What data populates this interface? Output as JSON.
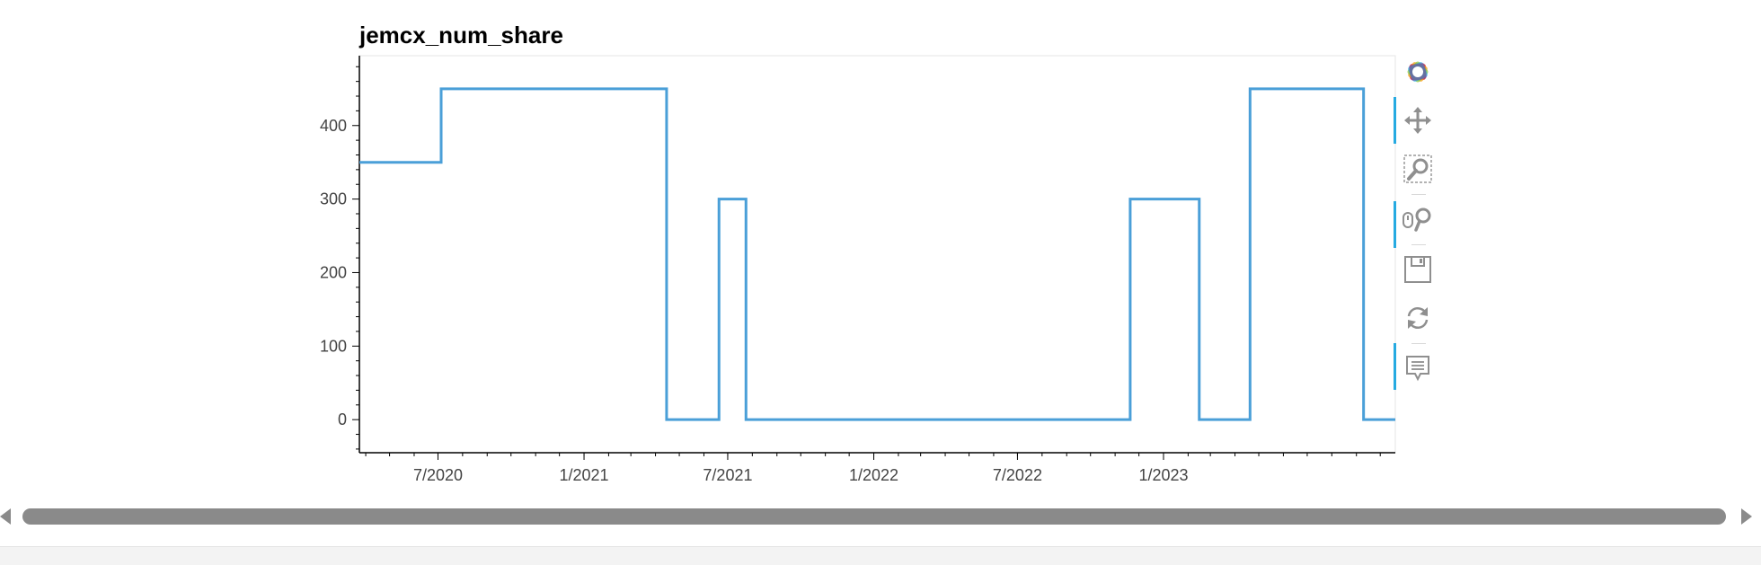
{
  "chart_data": {
    "type": "line",
    "title": "jemcx_num_share",
    "xlabel": "",
    "ylabel": "",
    "step": true,
    "x_axis_type": "date",
    "xlim": [
      "2020-03-24",
      "2023-10-20"
    ],
    "ylim": [
      -45,
      495
    ],
    "x_ticks": [
      "2020-07-01",
      "2021-01-01",
      "2021-07-01",
      "2022-01-01",
      "2022-07-01",
      "2023-01-01"
    ],
    "x_tick_labels": [
      "7/2020",
      "1/2021",
      "7/2021",
      "1/2022",
      "7/2022",
      "1/2023"
    ],
    "y_ticks": [
      0,
      100,
      200,
      300,
      400
    ],
    "y_tick_labels": [
      "0",
      "100",
      "200",
      "300",
      "400"
    ],
    "grid": false,
    "legend": "none",
    "series": [
      {
        "color": "#4a9fd8",
        "points": [
          {
            "x": "2020-03-24",
            "y": 350
          },
          {
            "x": "2020-07-05",
            "y": 350
          },
          {
            "x": "2020-07-05",
            "y": 450
          },
          {
            "x": "2021-04-15",
            "y": 450
          },
          {
            "x": "2021-04-15",
            "y": 0
          },
          {
            "x": "2021-06-20",
            "y": 0
          },
          {
            "x": "2021-06-20",
            "y": 300
          },
          {
            "x": "2021-07-24",
            "y": 300
          },
          {
            "x": "2021-07-24",
            "y": 0
          },
          {
            "x": "2022-11-20",
            "y": 0
          },
          {
            "x": "2022-11-20",
            "y": 300
          },
          {
            "x": "2023-02-15",
            "y": 300
          },
          {
            "x": "2023-02-15",
            "y": 0
          },
          {
            "x": "2023-04-20",
            "y": 0
          },
          {
            "x": "2023-04-20",
            "y": 450
          },
          {
            "x": "2023-09-10",
            "y": 450
          },
          {
            "x": "2023-09-10",
            "y": 0
          },
          {
            "x": "2023-10-20",
            "y": 0
          }
        ]
      }
    ]
  },
  "toolbar": {
    "tools": [
      {
        "icon": "bokeh-logo-icon",
        "label": "Bokeh"
      },
      {
        "icon": "pan-icon",
        "label": "Pan"
      },
      {
        "icon": "box-zoom-icon",
        "label": "Box Zoom"
      },
      {
        "icon": "wheel-zoom-icon",
        "label": "Wheel Zoom"
      },
      {
        "icon": "save-icon",
        "label": "Save"
      },
      {
        "icon": "reset-icon",
        "label": "Reset"
      },
      {
        "icon": "hover-icon",
        "label": "Hover"
      }
    ],
    "active_color": "#26aae1"
  },
  "colors": {
    "line": "#4a9fd8",
    "axis": "#000000",
    "tick_label": "#444444",
    "scroll_thumb": "#8a8a8a"
  }
}
